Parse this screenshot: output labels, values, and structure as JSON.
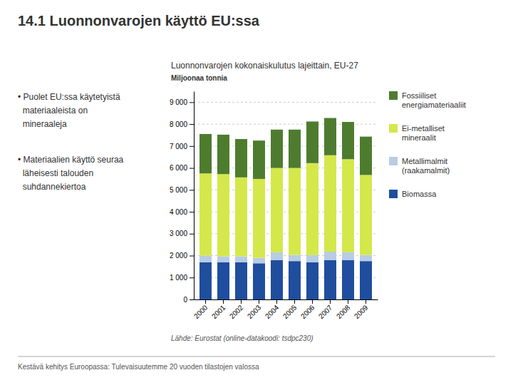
{
  "title": "14.1 Luonnonvarojen käyttö EU:ssa",
  "bullets": [
    [
      "• Puolet EU:ssa käytetyistä",
      "  materiaaleista on",
      "  mineraaleja"
    ],
    [
      "• Materiaalien käyttö seuraa",
      "  läheisesti talouden",
      "  suhdannekiertoa"
    ]
  ],
  "footer": "Kestävä kehitys Euroopassa: Tulevaisuutemme 20 vuoden tilastojen valossa",
  "chart_data": {
    "type": "bar",
    "stacked": true,
    "title": "Luonnonvarojen kokonaiskulutus lajeittain, EU-27",
    "ylabel": "Miljoonaa tonnia",
    "source": "Lähde: Eurostat (online-datakoodi: tsdpc230)",
    "categories": [
      "2000",
      "2001",
      "2002",
      "2003",
      "2004",
      "2005",
      "2006",
      "2007",
      "2008",
      "2009"
    ],
    "series": [
      {
        "name": "Biomassa",
        "color": "#1f4e9e",
        "values": [
          1700,
          1700,
          1700,
          1650,
          1800,
          1750,
          1700,
          1800,
          1800,
          1750
        ]
      },
      {
        "name": "Metallimalmit\n(raakamalmit)",
        "color": "#b8cce4",
        "values": [
          300,
          270,
          270,
          250,
          350,
          280,
          320,
          380,
          350,
          280
        ]
      },
      {
        "name": "Ei-metalliset\nmineraalit",
        "color": "#d4e84b",
        "values": [
          3750,
          3750,
          3600,
          3600,
          3850,
          3970,
          4200,
          4400,
          4250,
          3650
        ]
      },
      {
        "name": "Fossiiliset\nenergiamateriaaliit",
        "color": "#4e7c2f",
        "values": [
          1800,
          1800,
          1750,
          1750,
          1750,
          1750,
          1900,
          1700,
          1700,
          1750
        ]
      }
    ],
    "ylim": [
      0,
      9500
    ],
    "yticks": [
      0,
      {
        "value": 1000,
        "label": "1 000"
      },
      {
        "value": 2000,
        "label": "2 000"
      },
      {
        "value": 3000,
        "label": "3 000"
      },
      {
        "value": 4000,
        "label": "4 000"
      },
      {
        "value": 5000,
        "label": "5 000"
      },
      {
        "value": 6000,
        "label": "6 000"
      },
      {
        "value": 7000,
        "label": "7 000"
      },
      {
        "value": 8000,
        "label": "8 000"
      },
      {
        "value": 9000,
        "label": "9 000"
      }
    ],
    "grid": true,
    "legend": "right"
  }
}
